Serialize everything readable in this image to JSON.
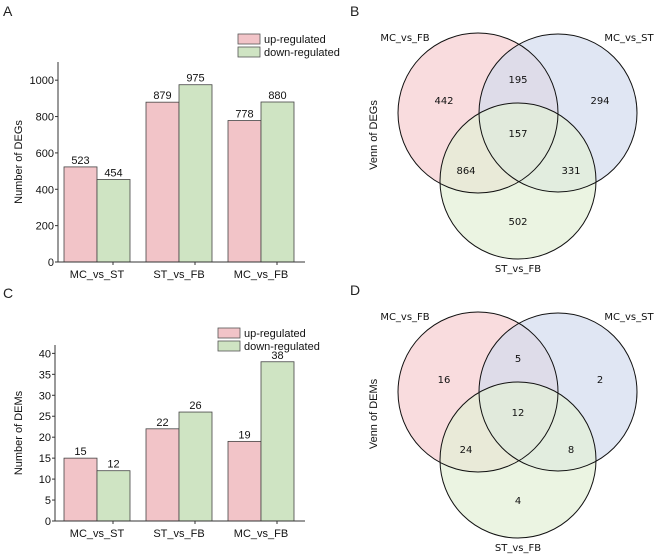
{
  "chart_data": [
    {
      "panel": "A",
      "type": "bar",
      "categories": [
        "MC_vs_ST",
        "ST_vs_FB",
        "MC_vs_FB"
      ],
      "series": [
        {
          "name": "up-regulated",
          "values": [
            523,
            879,
            778
          ],
          "color": "#f2c4c8"
        },
        {
          "name": "down-regulated",
          "values": [
            454,
            975,
            880
          ],
          "color": "#cfe4c3"
        }
      ],
      "ylabel": "Number of DEGs",
      "ylim": [
        0,
        1100
      ],
      "yticks": [
        0,
        200,
        400,
        600,
        800,
        1000
      ],
      "legend": "top-right"
    },
    {
      "panel": "B",
      "type": "venn",
      "ylabel": "Venn of DEGs",
      "sets": [
        {
          "name": "MC_vs_FB",
          "color": "#f7cdd0"
        },
        {
          "name": "MC_vs_ST",
          "color": "#d3dbee"
        },
        {
          "name": "ST_vs_FB",
          "color": "#e2f0d6"
        }
      ],
      "regions": {
        "only_MC_vs_FB": "442",
        "MC_vs_FB_and_MC_vs_ST": "195",
        "only_MC_vs_ST": "294",
        "all": "157",
        "MC_vs_FB_and_ST_vs_FB": "864",
        "MC_vs_ST_and_ST_vs_FB": "331",
        "only_ST_vs_FB": "502"
      }
    },
    {
      "panel": "C",
      "type": "bar",
      "categories": [
        "MC_vs_ST",
        "ST_vs_FB",
        "MC_vs_FB"
      ],
      "series": [
        {
          "name": "up-regulated",
          "values": [
            15,
            22,
            19
          ],
          "color": "#f2c4c8"
        },
        {
          "name": "down-regulated",
          "values": [
            12,
            26,
            38
          ],
          "color": "#cfe4c3"
        }
      ],
      "ylabel": "Number of DEMs",
      "ylim": [
        0,
        42
      ],
      "yticks": [
        0,
        5,
        10,
        15,
        20,
        25,
        30,
        35,
        40
      ],
      "legend": "top-right"
    },
    {
      "panel": "D",
      "type": "venn",
      "ylabel": "Venn of DEMs",
      "sets": [
        {
          "name": "MC_vs_FB",
          "color": "#f7cdd0"
        },
        {
          "name": "MC_vs_ST",
          "color": "#d3dbee"
        },
        {
          "name": "ST_vs_FB",
          "color": "#e2f0d6"
        }
      ],
      "regions": {
        "only_MC_vs_FB": "16",
        "MC_vs_FB_and_MC_vs_ST": "5",
        "only_MC_vs_ST": "2",
        "all": "12",
        "MC_vs_FB_and_ST_vs_FB": "24",
        "MC_vs_ST_and_ST_vs_FB": "8",
        "only_ST_vs_FB": "4"
      }
    }
  ]
}
